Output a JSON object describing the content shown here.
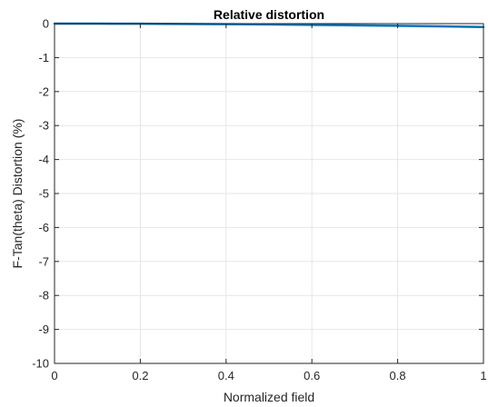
{
  "chart_data": {
    "type": "line",
    "title": "Relative distortion",
    "xlabel": "Normalized field",
    "ylabel": "F-Tan(theta) Distortion (%)",
    "xlim": [
      0,
      1
    ],
    "ylim": [
      -10,
      0
    ],
    "xticks": [
      0,
      0.2,
      0.4,
      0.6,
      0.8,
      1
    ],
    "xtick_labels": [
      "0",
      "0.2",
      "0.4",
      "0.6",
      "0.8",
      "1"
    ],
    "yticks": [
      0,
      -1,
      -2,
      -3,
      -4,
      -5,
      -6,
      -7,
      -8,
      -9,
      -10
    ],
    "ytick_labels": [
      "0",
      "-1",
      "-2",
      "-3",
      "-4",
      "-5",
      "-6",
      "-7",
      "-8",
      "-9",
      "-10"
    ],
    "grid": true,
    "series": [
      {
        "color": "#0072BD",
        "x": [
          0,
          0.1,
          0.2,
          0.3,
          0.4,
          0.5,
          0.6,
          0.7,
          0.8,
          0.9,
          1.0
        ],
        "y": [
          0,
          -0.001,
          -0.004,
          -0.009,
          -0.016,
          -0.025,
          -0.036,
          -0.049,
          -0.064,
          -0.081,
          -0.1
        ]
      }
    ]
  }
}
